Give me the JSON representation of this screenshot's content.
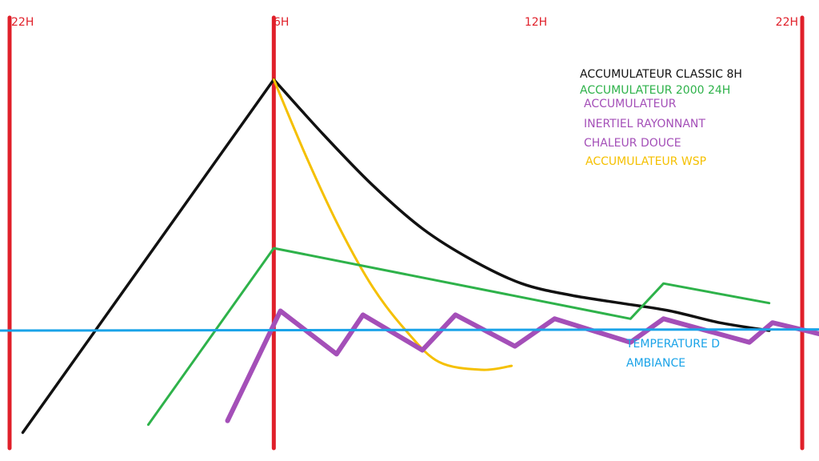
{
  "chart_data": {
    "type": "line",
    "x_ticks": [
      {
        "label": "22H",
        "hour": -8
      },
      {
        "label": "6H",
        "hour": 0
      },
      {
        "label": "12H",
        "hour": 6
      },
      {
        "label": "22H",
        "hour": 16
      }
    ],
    "vertical_markers_hours": [
      -8,
      0,
      16
    ],
    "xlim": [
      -8,
      16
    ],
    "ylim": [
      0,
      100
    ],
    "grid": false,
    "legend_position": "top-right",
    "legend": [
      {
        "text": "ACCUMULATEUR CLASSIC 8H",
        "color": "#111111"
      },
      {
        "text": "ACCUMULATEUR 2000 24H",
        "color": "#2eb24a"
      },
      {
        "text": "ACCUMULATEUR",
        "color": "#a44fb8"
      },
      {
        "text": "INERTIEL RAYONNANT",
        "color": "#a44fb8"
      },
      {
        "text": "CHALEUR DOUCE",
        "color": "#a44fb8"
      },
      {
        "text": "ACCUMULATEUR WSP",
        "color": "#f5c000"
      }
    ],
    "annotation": {
      "lines": [
        "TEMPERATURE D",
        "AMBIANCE"
      ],
      "color": "#1aa3e8"
    },
    "series": [
      {
        "color": "#111111",
        "width": 3.5,
        "smooth": true,
        "points": [
          [
            -7.6,
            4
          ],
          [
            0,
            94
          ],
          [
            1.5,
            80
          ],
          [
            3,
            67
          ],
          [
            4.5,
            56
          ],
          [
            6,
            48
          ],
          [
            7.5,
            42
          ],
          [
            9,
            39
          ],
          [
            10.5,
            37
          ],
          [
            12,
            35
          ],
          [
            13.5,
            32
          ],
          [
            15,
            30
          ]
        ]
      },
      {
        "color": "#f5c000",
        "width": 3,
        "smooth": true,
        "points": [
          [
            0,
            94
          ],
          [
            1,
            74
          ],
          [
            2,
            56
          ],
          [
            3,
            41
          ],
          [
            4,
            30
          ],
          [
            5,
            22
          ],
          [
            6.3,
            20
          ],
          [
            7.2,
            21
          ]
        ]
      },
      {
        "color": "#2eb24a",
        "width": 3,
        "smooth": false,
        "points": [
          [
            -3.8,
            6
          ],
          [
            0,
            51
          ],
          [
            10.8,
            33
          ],
          [
            11.8,
            42
          ],
          [
            15,
            37
          ]
        ]
      },
      {
        "color": "#a44fb8",
        "width": 6,
        "smooth": false,
        "points": [
          [
            -1.4,
            7
          ],
          [
            0.2,
            35
          ],
          [
            1.9,
            24
          ],
          [
            2.7,
            34
          ],
          [
            4.5,
            25
          ],
          [
            5.5,
            34
          ],
          [
            7.3,
            26
          ],
          [
            8.5,
            33
          ],
          [
            10.8,
            27
          ],
          [
            11.8,
            33
          ],
          [
            14.4,
            27
          ],
          [
            15.1,
            32
          ],
          [
            17.1,
            28
          ]
        ]
      },
      {
        "color": "#1aa3e8",
        "width": 3,
        "smooth": false,
        "points": [
          [
            -8.3,
            30
          ],
          [
            17.1,
            30.3
          ]
        ]
      }
    ]
  }
}
